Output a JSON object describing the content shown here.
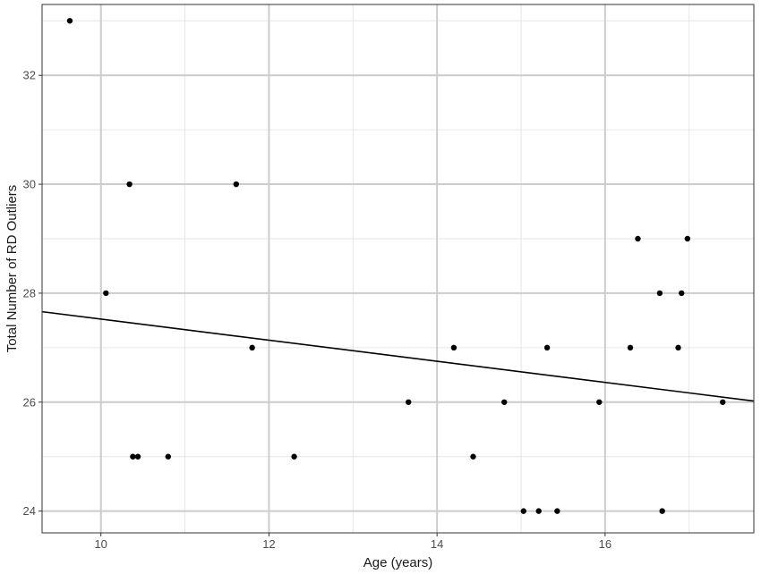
{
  "chart_data": {
    "type": "scatter",
    "xlabel": "Age (years)",
    "ylabel": "Total Number of RD Outliers",
    "xlim": [
      9.3,
      17.77
    ],
    "ylim": [
      23.6,
      33.3
    ],
    "x_major_ticks": [
      10,
      12,
      14,
      16
    ],
    "x_minor_ticks": [
      11,
      13,
      15,
      17
    ],
    "y_major_ticks": [
      24,
      26,
      28,
      30,
      32
    ],
    "y_minor_ticks": [
      25,
      27,
      29,
      31,
      33
    ],
    "x_tick_labels": [
      "10",
      "12",
      "14",
      "16"
    ],
    "y_tick_labels": [
      "24",
      "26",
      "28",
      "30",
      "32"
    ],
    "grid": true,
    "points": [
      {
        "x": 9.63,
        "y": 33
      },
      {
        "x": 10.06,
        "y": 28
      },
      {
        "x": 10.34,
        "y": 30
      },
      {
        "x": 10.38,
        "y": 25
      },
      {
        "x": 10.44,
        "y": 25
      },
      {
        "x": 10.8,
        "y": 25
      },
      {
        "x": 11.61,
        "y": 30
      },
      {
        "x": 11.8,
        "y": 27
      },
      {
        "x": 12.3,
        "y": 25
      },
      {
        "x": 13.66,
        "y": 26
      },
      {
        "x": 14.2,
        "y": 27
      },
      {
        "x": 14.43,
        "y": 25
      },
      {
        "x": 14.8,
        "y": 26
      },
      {
        "x": 15.03,
        "y": 24
      },
      {
        "x": 15.21,
        "y": 24
      },
      {
        "x": 15.31,
        "y": 27
      },
      {
        "x": 15.43,
        "y": 24
      },
      {
        "x": 15.93,
        "y": 26
      },
      {
        "x": 16.3,
        "y": 27
      },
      {
        "x": 16.39,
        "y": 29
      },
      {
        "x": 16.65,
        "y": 28
      },
      {
        "x": 16.68,
        "y": 24
      },
      {
        "x": 16.87,
        "y": 27
      },
      {
        "x": 16.91,
        "y": 28
      },
      {
        "x": 16.98,
        "y": 29
      },
      {
        "x": 17.4,
        "y": 26
      }
    ],
    "trend_line": {
      "x1": 9.3,
      "y1": 27.66,
      "x2": 17.77,
      "y2": 26.02
    },
    "colors": {
      "point": "#000000",
      "line": "#000000",
      "grid_major": "#cccccc",
      "grid_minor": "#e6e6e6",
      "panel_border": "#333333"
    }
  }
}
